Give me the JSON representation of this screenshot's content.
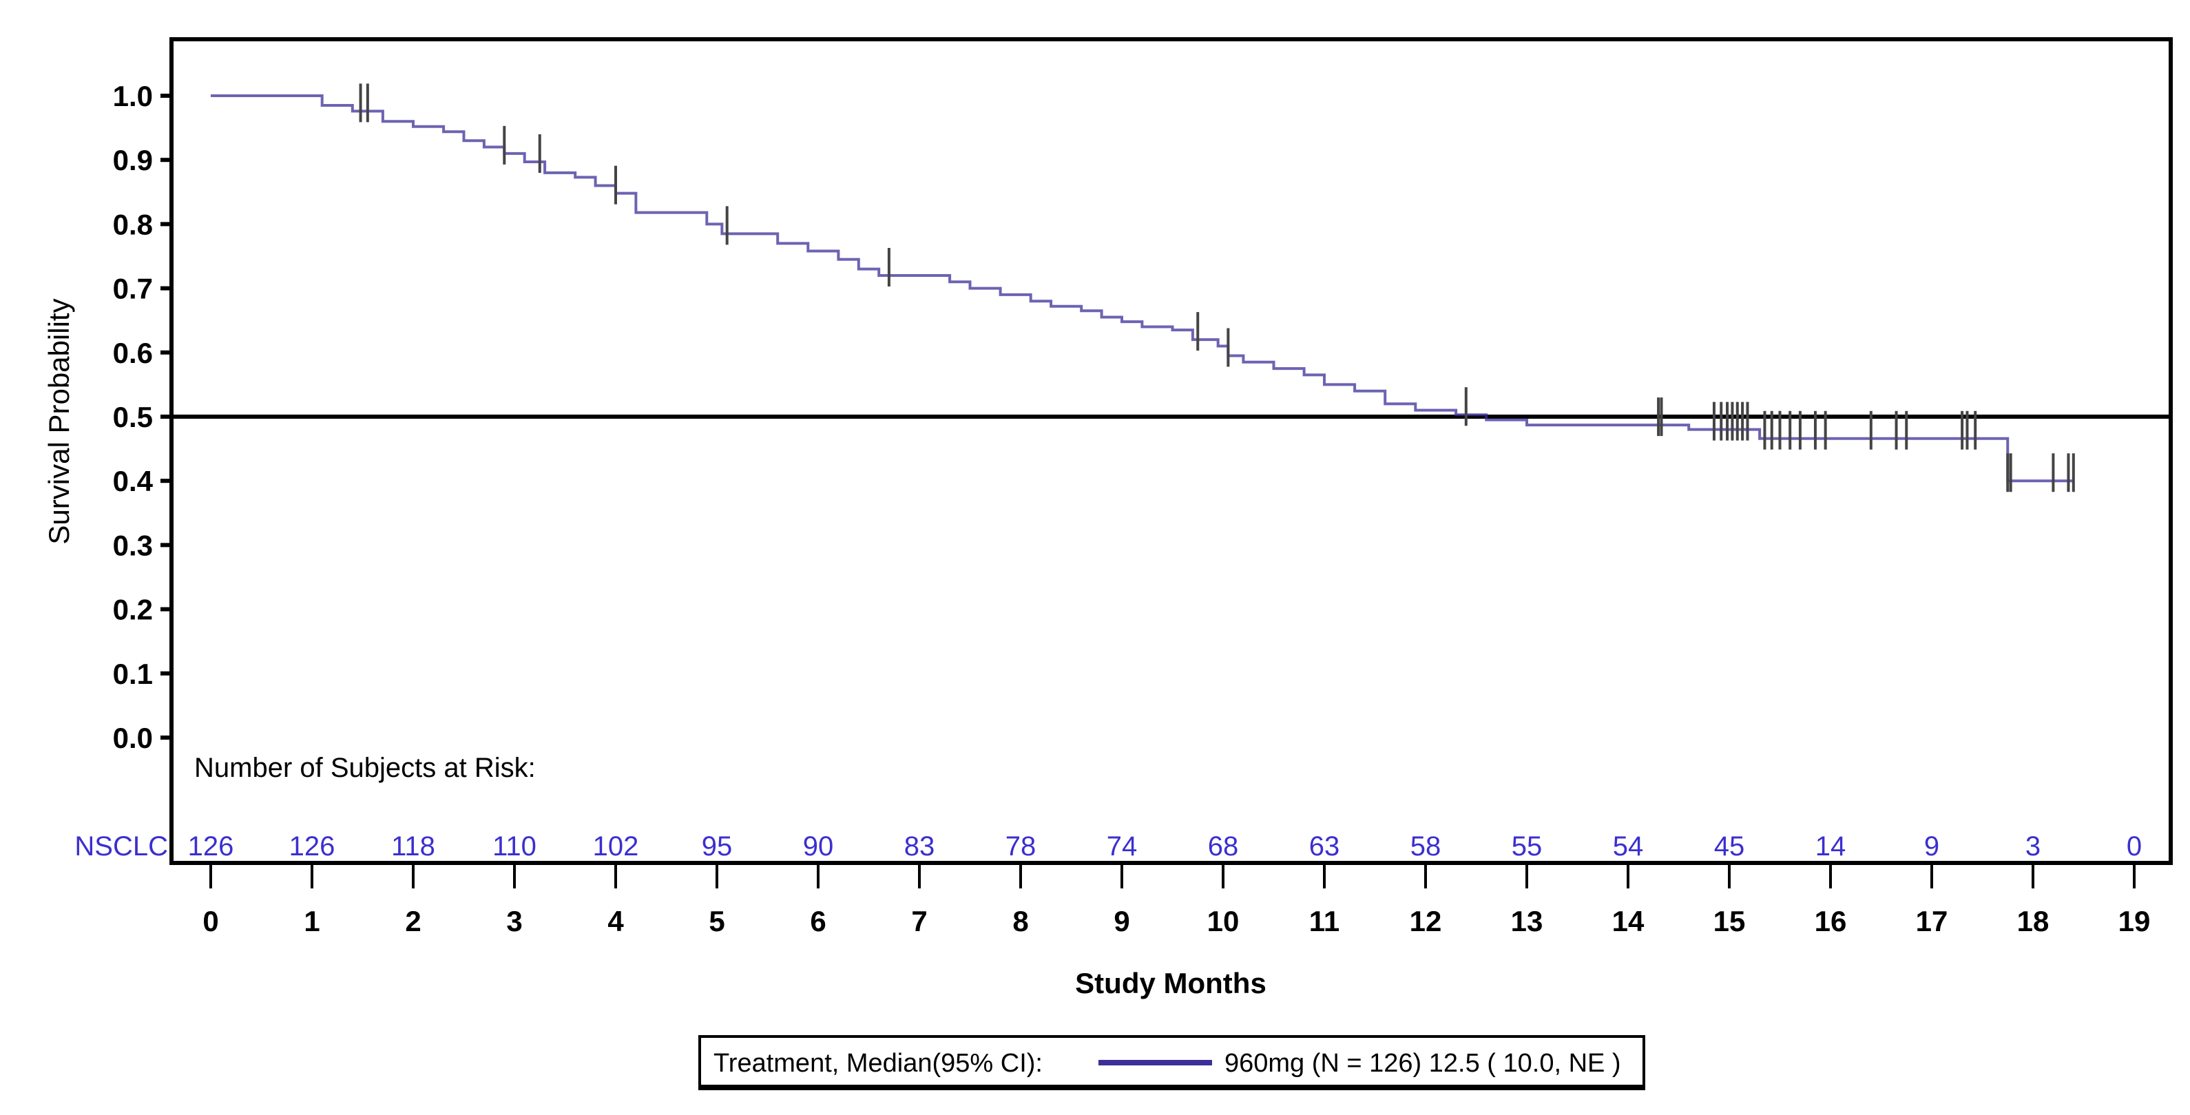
{
  "chart_data": {
    "type": "line",
    "subtype": "kaplan-meier step",
    "ylabel": "Survival Probability",
    "xlabel": "Study Months",
    "xlim": [
      0,
      19
    ],
    "ylim": [
      0,
      1.0
    ],
    "xticks": [
      "0",
      "1",
      "2",
      "3",
      "4",
      "5",
      "6",
      "7",
      "8",
      "9",
      "10",
      "11",
      "12",
      "13",
      "14",
      "15",
      "16",
      "17",
      "18",
      "19"
    ],
    "yticks": [
      "0.0",
      "0.1",
      "0.2",
      "0.3",
      "0.4",
      "0.5",
      "0.6",
      "0.7",
      "0.8",
      "0.9",
      "1.0"
    ],
    "reference_line_y": 0.5,
    "grid": false,
    "series_color": "#3b2f9a",
    "censor_color": "#444444",
    "series": [
      {
        "name": "960mg",
        "steps": [
          [
            0,
            1.0
          ],
          [
            1.1,
            0.985
          ],
          [
            1.4,
            0.976
          ],
          [
            1.7,
            0.96
          ],
          [
            2.0,
            0.952
          ],
          [
            2.3,
            0.944
          ],
          [
            2.5,
            0.93
          ],
          [
            2.7,
            0.92
          ],
          [
            2.9,
            0.91
          ],
          [
            3.1,
            0.897
          ],
          [
            3.3,
            0.88
          ],
          [
            3.6,
            0.873
          ],
          [
            3.8,
            0.86
          ],
          [
            4.0,
            0.848
          ],
          [
            4.2,
            0.818
          ],
          [
            4.9,
            0.8
          ],
          [
            5.05,
            0.785
          ],
          [
            5.6,
            0.77
          ],
          [
            5.9,
            0.758
          ],
          [
            6.2,
            0.745
          ],
          [
            6.4,
            0.73
          ],
          [
            6.6,
            0.72
          ],
          [
            7.3,
            0.71
          ],
          [
            7.5,
            0.7
          ],
          [
            7.8,
            0.69
          ],
          [
            8.1,
            0.68
          ],
          [
            8.3,
            0.672
          ],
          [
            8.6,
            0.665
          ],
          [
            8.8,
            0.655
          ],
          [
            9.0,
            0.648
          ],
          [
            9.2,
            0.64
          ],
          [
            9.5,
            0.635
          ],
          [
            9.7,
            0.62
          ],
          [
            9.95,
            0.61
          ],
          [
            10.05,
            0.595
          ],
          [
            10.2,
            0.585
          ],
          [
            10.5,
            0.575
          ],
          [
            10.8,
            0.565
          ],
          [
            11.0,
            0.55
          ],
          [
            11.3,
            0.54
          ],
          [
            11.6,
            0.52
          ],
          [
            11.9,
            0.51
          ],
          [
            12.3,
            0.503
          ],
          [
            12.6,
            0.495
          ],
          [
            13.0,
            0.487
          ],
          [
            14.6,
            0.48
          ],
          [
            15.3,
            0.466
          ],
          [
            17.75,
            0.4
          ]
        ],
        "end_x": 18.4,
        "censored_x": [
          1.48,
          1.55,
          2.9,
          3.25,
          4.0,
          5.1,
          6.7,
          9.75,
          10.05,
          12.4,
          14.3,
          14.33,
          14.85,
          14.92,
          14.98,
          15.03,
          15.08,
          15.13,
          15.18,
          15.35,
          15.42,
          15.5,
          15.6,
          15.7,
          15.85,
          15.95,
          16.4,
          16.65,
          16.75,
          17.3,
          17.35,
          17.43,
          17.75,
          17.78,
          18.2,
          18.35,
          18.4
        ]
      }
    ],
    "at_risk": {
      "title": "Number of Subjects at Risk:",
      "label": "NSCLC",
      "values": [
        "126",
        "126",
        "118",
        "110",
        "102",
        "95",
        "90",
        "83",
        "78",
        "74",
        "68",
        "63",
        "58",
        "55",
        "54",
        "45",
        "14",
        "9",
        "3",
        "0"
      ]
    },
    "legend": {
      "title": "Treatment, Median(95% CI):",
      "entry": "960mg (N = 126) 12.5 ( 10.0, NE )",
      "placement": "bottom"
    }
  }
}
